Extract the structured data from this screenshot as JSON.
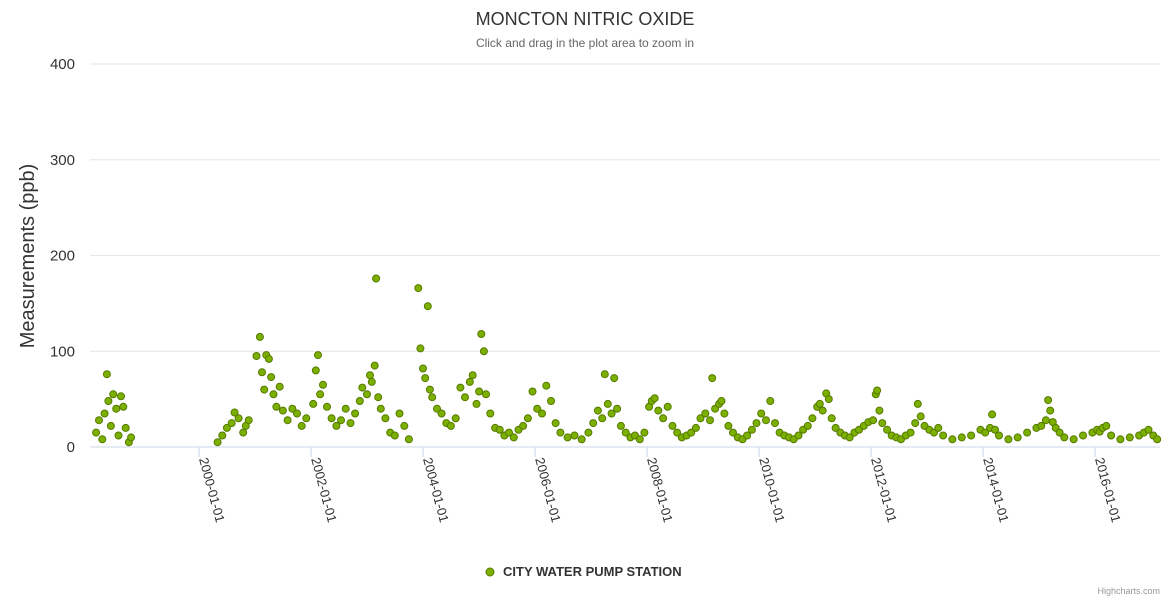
{
  "chart_data": {
    "type": "scatter",
    "title": "MONCTON NITRIC OXIDE",
    "subtitle": "Click and drag in the plot area to zoom in",
    "ylabel": "Measurements (ppb)",
    "xlabel": "",
    "ylim": [
      0,
      400
    ],
    "xlim": [
      "1998-01-20",
      "2017-02-28"
    ],
    "yticks": [
      "0",
      "100",
      "200",
      "300",
      "400"
    ],
    "xticks": [
      "2000-01-01",
      "2002-01-01",
      "2004-01-01",
      "2006-01-01",
      "2008-01-01",
      "2010-01-01",
      "2012-01-01",
      "2014-01-01",
      "2016-01-01"
    ],
    "grid": true,
    "legend_position": "bottom-center",
    "series": [
      {
        "name": "CITY WATER PUMP STATION",
        "color": "#7cb000",
        "points": [
          [
            "1998-03-01",
            15
          ],
          [
            "1998-03-20",
            28
          ],
          [
            "1998-04-10",
            8
          ],
          [
            "1998-04-25",
            35
          ],
          [
            "1998-05-10",
            76
          ],
          [
            "1998-05-20",
            48
          ],
          [
            "1998-06-05",
            22
          ],
          [
            "1998-06-20",
            55
          ],
          [
            "1998-07-10",
            40
          ],
          [
            "1998-07-25",
            12
          ],
          [
            "1998-08-10",
            53
          ],
          [
            "1998-08-25",
            42
          ],
          [
            "1998-09-10",
            20
          ],
          [
            "1998-10-01",
            5
          ],
          [
            "1998-10-15",
            10
          ],
          [
            "2000-05-01",
            5
          ],
          [
            "2000-06-01",
            12
          ],
          [
            "2000-07-01",
            20
          ],
          [
            "2000-08-01",
            25
          ],
          [
            "2000-08-20",
            36
          ],
          [
            "2000-09-15",
            30
          ],
          [
            "2000-10-15",
            15
          ],
          [
            "2000-11-01",
            22
          ],
          [
            "2000-11-20",
            28
          ],
          [
            "2001-01-10",
            95
          ],
          [
            "2001-02-01",
            115
          ],
          [
            "2001-02-15",
            78
          ],
          [
            "2001-03-01",
            60
          ],
          [
            "2001-03-15",
            96
          ],
          [
            "2001-04-01",
            92
          ],
          [
            "2001-04-15",
            73
          ],
          [
            "2001-05-01",
            55
          ],
          [
            "2001-05-20",
            42
          ],
          [
            "2001-06-10",
            63
          ],
          [
            "2001-07-01",
            38
          ],
          [
            "2001-08-01",
            28
          ],
          [
            "2001-09-01",
            40
          ],
          [
            "2001-10-01",
            35
          ],
          [
            "2001-11-01",
            22
          ],
          [
            "2001-12-01",
            30
          ],
          [
            "2002-01-15",
            45
          ],
          [
            "2002-02-01",
            80
          ],
          [
            "2002-02-15",
            96
          ],
          [
            "2002-03-01",
            55
          ],
          [
            "2002-03-20",
            65
          ],
          [
            "2002-04-15",
            42
          ],
          [
            "2002-05-15",
            30
          ],
          [
            "2002-06-15",
            22
          ],
          [
            "2002-07-15",
            28
          ],
          [
            "2002-08-15",
            40
          ],
          [
            "2002-09-15",
            25
          ],
          [
            "2002-10-15",
            35
          ],
          [
            "2002-11-15",
            48
          ],
          [
            "2002-12-01",
            62
          ],
          [
            "2003-01-01",
            55
          ],
          [
            "2003-01-20",
            75
          ],
          [
            "2003-02-01",
            68
          ],
          [
            "2003-02-20",
            85
          ],
          [
            "2003-03-01",
            176
          ],
          [
            "2003-03-15",
            52
          ],
          [
            "2003-04-01",
            40
          ],
          [
            "2003-05-01",
            30
          ],
          [
            "2003-06-01",
            15
          ],
          [
            "2003-07-01",
            12
          ],
          [
            "2003-08-01",
            35
          ],
          [
            "2003-09-01",
            22
          ],
          [
            "2003-10-01",
            8
          ],
          [
            "2003-12-01",
            166
          ],
          [
            "2003-12-15",
            103
          ],
          [
            "2004-01-01",
            82
          ],
          [
            "2004-01-15",
            72
          ],
          [
            "2004-02-01",
            147
          ],
          [
            "2004-02-15",
            60
          ],
          [
            "2004-03-01",
            52
          ],
          [
            "2004-04-01",
            40
          ],
          [
            "2004-05-01",
            35
          ],
          [
            "2004-06-01",
            25
          ],
          [
            "2004-07-01",
            22
          ],
          [
            "2004-08-01",
            30
          ],
          [
            "2004-09-01",
            62
          ],
          [
            "2004-10-01",
            52
          ],
          [
            "2004-11-01",
            68
          ],
          [
            "2004-11-20",
            75
          ],
          [
            "2004-12-15",
            45
          ],
          [
            "2005-01-01",
            58
          ],
          [
            "2005-01-15",
            118
          ],
          [
            "2005-02-01",
            100
          ],
          [
            "2005-02-15",
            55
          ],
          [
            "2005-03-15",
            35
          ],
          [
            "2005-04-15",
            20
          ],
          [
            "2005-05-15",
            18
          ],
          [
            "2005-06-15",
            12
          ],
          [
            "2005-07-15",
            15
          ],
          [
            "2005-08-15",
            10
          ],
          [
            "2005-09-15",
            18
          ],
          [
            "2005-10-15",
            22
          ],
          [
            "2005-11-15",
            30
          ],
          [
            "2005-12-15",
            58
          ],
          [
            "2006-01-15",
            40
          ],
          [
            "2006-02-15",
            35
          ],
          [
            "2006-03-15",
            64
          ],
          [
            "2006-04-15",
            48
          ],
          [
            "2006-05-15",
            25
          ],
          [
            "2006-06-15",
            15
          ],
          [
            "2006-08-01",
            10
          ],
          [
            "2006-09-15",
            12
          ],
          [
            "2006-11-01",
            8
          ],
          [
            "2006-12-15",
            15
          ],
          [
            "2007-01-15",
            25
          ],
          [
            "2007-02-15",
            38
          ],
          [
            "2007-03-15",
            30
          ],
          [
            "2007-04-01",
            76
          ],
          [
            "2007-04-20",
            45
          ],
          [
            "2007-05-15",
            35
          ],
          [
            "2007-06-01",
            72
          ],
          [
            "2007-06-20",
            40
          ],
          [
            "2007-07-15",
            22
          ],
          [
            "2007-08-15",
            15
          ],
          [
            "2007-09-15",
            10
          ],
          [
            "2007-10-15",
            12
          ],
          [
            "2007-11-15",
            8
          ],
          [
            "2007-12-15",
            15
          ],
          [
            "2008-01-15",
            42
          ],
          [
            "2008-02-01",
            48
          ],
          [
            "2008-02-20",
            51
          ],
          [
            "2008-03-15",
            38
          ],
          [
            "2008-04-15",
            30
          ],
          [
            "2008-05-15",
            42
          ],
          [
            "2008-06-15",
            22
          ],
          [
            "2008-07-15",
            15
          ],
          [
            "2008-08-15",
            10
          ],
          [
            "2008-09-15",
            12
          ],
          [
            "2008-10-15",
            15
          ],
          [
            "2008-11-15",
            20
          ],
          [
            "2008-12-15",
            30
          ],
          [
            "2009-01-15",
            35
          ],
          [
            "2009-02-15",
            28
          ],
          [
            "2009-03-01",
            72
          ],
          [
            "2009-03-20",
            40
          ],
          [
            "2009-04-15",
            45
          ],
          [
            "2009-05-01",
            48
          ],
          [
            "2009-05-20",
            35
          ],
          [
            "2009-06-15",
            22
          ],
          [
            "2009-07-15",
            15
          ],
          [
            "2009-08-15",
            10
          ],
          [
            "2009-09-15",
            8
          ],
          [
            "2009-10-15",
            12
          ],
          [
            "2009-11-15",
            18
          ],
          [
            "2009-12-15",
            25
          ],
          [
            "2010-01-15",
            35
          ],
          [
            "2010-02-15",
            28
          ],
          [
            "2010-03-15",
            48
          ],
          [
            "2010-04-15",
            25
          ],
          [
            "2010-05-15",
            15
          ],
          [
            "2010-06-15",
            12
          ],
          [
            "2010-07-15",
            10
          ],
          [
            "2010-08-15",
            8
          ],
          [
            "2010-09-15",
            12
          ],
          [
            "2010-10-15",
            18
          ],
          [
            "2010-11-15",
            22
          ],
          [
            "2010-12-15",
            30
          ],
          [
            "2011-01-15",
            42
          ],
          [
            "2011-02-01",
            45
          ],
          [
            "2011-02-20",
            38
          ],
          [
            "2011-03-15",
            56
          ],
          [
            "2011-04-01",
            50
          ],
          [
            "2011-04-20",
            30
          ],
          [
            "2011-05-15",
            20
          ],
          [
            "2011-06-15",
            15
          ],
          [
            "2011-07-15",
            12
          ],
          [
            "2011-08-15",
            10
          ],
          [
            "2011-09-15",
            15
          ],
          [
            "2011-10-15",
            18
          ],
          [
            "2011-11-15",
            22
          ],
          [
            "2011-12-15",
            26
          ],
          [
            "2012-01-15",
            28
          ],
          [
            "2012-02-01",
            55
          ],
          [
            "2012-02-10",
            59
          ],
          [
            "2012-02-25",
            38
          ],
          [
            "2012-03-15",
            25
          ],
          [
            "2012-04-15",
            18
          ],
          [
            "2012-05-15",
            12
          ],
          [
            "2012-06-15",
            10
          ],
          [
            "2012-07-15",
            8
          ],
          [
            "2012-08-15",
            12
          ],
          [
            "2012-09-15",
            15
          ],
          [
            "2012-10-15",
            25
          ],
          [
            "2012-11-01",
            45
          ],
          [
            "2012-11-20",
            32
          ],
          [
            "2012-12-15",
            22
          ],
          [
            "2013-01-15",
            18
          ],
          [
            "2013-02-15",
            15
          ],
          [
            "2013-03-15",
            20
          ],
          [
            "2013-04-15",
            12
          ],
          [
            "2013-06-15",
            8
          ],
          [
            "2013-08-15",
            10
          ],
          [
            "2013-10-15",
            12
          ],
          [
            "2013-12-15",
            18
          ],
          [
            "2014-01-15",
            15
          ],
          [
            "2014-02-15",
            20
          ],
          [
            "2014-03-01",
            34
          ],
          [
            "2014-03-20",
            18
          ],
          [
            "2014-04-15",
            12
          ],
          [
            "2014-06-15",
            8
          ],
          [
            "2014-08-15",
            10
          ],
          [
            "2014-10-15",
            15
          ],
          [
            "2014-12-15",
            20
          ],
          [
            "2015-01-15",
            22
          ],
          [
            "2015-02-15",
            28
          ],
          [
            "2015-03-01",
            49
          ],
          [
            "2015-03-15",
            38
          ],
          [
            "2015-04-01",
            26
          ],
          [
            "2015-04-20",
            20
          ],
          [
            "2015-05-15",
            15
          ],
          [
            "2015-06-15",
            10
          ],
          [
            "2015-08-15",
            8
          ],
          [
            "2015-10-15",
            12
          ],
          [
            "2015-12-15",
            15
          ],
          [
            "2016-01-15",
            18
          ],
          [
            "2016-02-01",
            16
          ],
          [
            "2016-02-20",
            20
          ],
          [
            "2016-03-15",
            22
          ],
          [
            "2016-04-15",
            12
          ],
          [
            "2016-06-15",
            8
          ],
          [
            "2016-08-15",
            10
          ],
          [
            "2016-10-15",
            12
          ],
          [
            "2016-11-15",
            15
          ],
          [
            "2016-12-15",
            18
          ],
          [
            "2017-01-15",
            12
          ],
          [
            "2017-02-10",
            8
          ]
        ]
      }
    ]
  },
  "credits": "Highcharts.com"
}
